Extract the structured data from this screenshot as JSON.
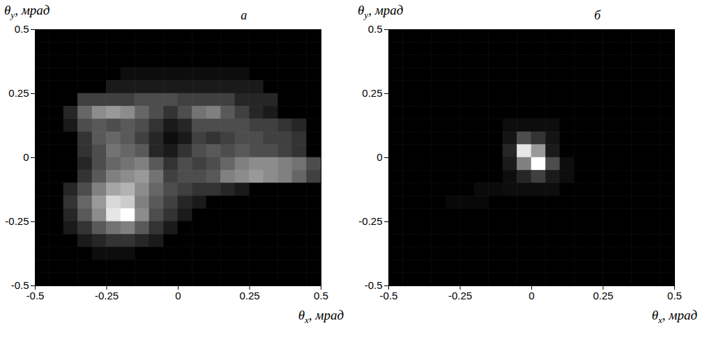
{
  "chart_data": [
    {
      "type": "heatmap",
      "title": "а",
      "x_label": "θx, мрад",
      "y_label": "θy, мрад",
      "xlim": [
        -0.5,
        0.5
      ],
      "ylim": [
        -0.5,
        0.5
      ],
      "xticks": [
        -0.5,
        -0.25,
        0,
        0.25,
        0.5
      ],
      "yticks": [
        -0.5,
        -0.25,
        0,
        0.25,
        0.5
      ],
      "color": "gray",
      "cells": [
        [
          0,
          0,
          0,
          0,
          0,
          0,
          0,
          0,
          0,
          0,
          0,
          0,
          0,
          0,
          0,
          0,
          0,
          0,
          0,
          0
        ],
        [
          0,
          0,
          0,
          0,
          0,
          0,
          0,
          0,
          0,
          0,
          0,
          0,
          0,
          0,
          0,
          0,
          0,
          0,
          0,
          0
        ],
        [
          0,
          0,
          0,
          0,
          0,
          0,
          0,
          0,
          0,
          0,
          0,
          0,
          0,
          0,
          0,
          0,
          0,
          0,
          0,
          0
        ],
        [
          0,
          0,
          0,
          0,
          0,
          0,
          0.05,
          0.05,
          0.05,
          0.05,
          0.05,
          0.05,
          0.05,
          0.05,
          0.05,
          0,
          0,
          0,
          0,
          0
        ],
        [
          0,
          0,
          0,
          0,
          0,
          0.1,
          0.1,
          0.1,
          0.1,
          0.1,
          0.1,
          0.1,
          0.1,
          0.1,
          0.1,
          0.1,
          0,
          0,
          0,
          0
        ],
        [
          0,
          0,
          0,
          0.25,
          0.25,
          0.25,
          0.25,
          0.3,
          0.3,
          0.3,
          0.25,
          0.25,
          0.25,
          0.25,
          0.15,
          0.15,
          0.15,
          0,
          0,
          0
        ],
        [
          0,
          0,
          0.15,
          0.4,
          0.55,
          0.6,
          0.55,
          0.4,
          0.3,
          0.2,
          0.3,
          0.45,
          0.5,
          0.35,
          0.25,
          0.15,
          0.1,
          0,
          0,
          0
        ],
        [
          0,
          0,
          0.1,
          0.3,
          0.35,
          0.3,
          0.35,
          0.3,
          0.2,
          0.1,
          0.15,
          0.3,
          0.3,
          0.3,
          0.3,
          0.25,
          0.25,
          0.2,
          0.15,
          0
        ],
        [
          0,
          0,
          0,
          0.2,
          0.35,
          0.4,
          0.35,
          0.25,
          0.15,
          0.05,
          0.1,
          0.25,
          0.2,
          0.25,
          0.3,
          0.3,
          0.25,
          0.25,
          0.2,
          0
        ],
        [
          0,
          0,
          0,
          0.2,
          0.3,
          0.45,
          0.4,
          0.35,
          0.15,
          0.1,
          0.2,
          0.3,
          0.35,
          0.3,
          0.35,
          0.3,
          0.3,
          0.25,
          0.2,
          0
        ],
        [
          0,
          0,
          0,
          0.15,
          0.3,
          0.4,
          0.45,
          0.5,
          0.35,
          0.2,
          0.3,
          0.25,
          0.3,
          0.4,
          0.5,
          0.55,
          0.55,
          0.5,
          0.45,
          0.3
        ],
        [
          0,
          0,
          0,
          0.2,
          0.35,
          0.5,
          0.55,
          0.6,
          0.45,
          0.25,
          0.3,
          0.3,
          0.35,
          0.5,
          0.55,
          0.6,
          0.55,
          0.5,
          0.4,
          0.25
        ],
        [
          0,
          0,
          0.15,
          0.3,
          0.5,
          0.65,
          0.7,
          0.55,
          0.4,
          0.3,
          0.25,
          0.2,
          0.2,
          0.15,
          0.1,
          0,
          0,
          0,
          0,
          0
        ],
        [
          0,
          0,
          0.2,
          0.4,
          0.6,
          0.85,
          0.8,
          0.5,
          0.35,
          0.25,
          0.15,
          0.1,
          0,
          0,
          0,
          0,
          0,
          0,
          0,
          0
        ],
        [
          0,
          0,
          0.15,
          0.35,
          0.55,
          0.9,
          1,
          0.55,
          0.3,
          0.2,
          0.1,
          0,
          0,
          0,
          0,
          0,
          0,
          0,
          0,
          0
        ],
        [
          0,
          0,
          0.1,
          0.2,
          0.35,
          0.45,
          0.5,
          0.35,
          0.2,
          0.1,
          0,
          0,
          0,
          0,
          0,
          0,
          0,
          0,
          0,
          0
        ],
        [
          0,
          0,
          0,
          0.1,
          0.15,
          0.2,
          0.2,
          0.15,
          0.1,
          0,
          0,
          0,
          0,
          0,
          0,
          0,
          0,
          0,
          0,
          0
        ],
        [
          0,
          0,
          0,
          0,
          0.05,
          0.05,
          0.05,
          0,
          0,
          0,
          0,
          0,
          0,
          0,
          0,
          0,
          0,
          0,
          0,
          0
        ],
        [
          0,
          0,
          0,
          0,
          0,
          0,
          0,
          0,
          0,
          0,
          0,
          0,
          0,
          0,
          0,
          0,
          0,
          0,
          0,
          0
        ],
        [
          0,
          0,
          0,
          0,
          0,
          0,
          0,
          0,
          0,
          0,
          0,
          0,
          0,
          0,
          0,
          0,
          0,
          0,
          0,
          0
        ]
      ]
    },
    {
      "type": "heatmap",
      "title": "б",
      "x_label": "θx, мрад",
      "y_label": "θy, мрад",
      "xlim": [
        -0.5,
        0.5
      ],
      "ylim": [
        -0.5,
        0.5
      ],
      "xticks": [
        -0.5,
        -0.25,
        0,
        0.25,
        0.5
      ],
      "yticks": [
        -0.5,
        -0.25,
        0,
        0.25,
        0.5
      ],
      "color": "gray",
      "cells": [
        [
          0,
          0,
          0,
          0,
          0,
          0,
          0,
          0,
          0,
          0,
          0,
          0,
          0,
          0,
          0,
          0,
          0,
          0,
          0,
          0
        ],
        [
          0,
          0,
          0,
          0,
          0,
          0,
          0,
          0,
          0,
          0,
          0,
          0,
          0,
          0,
          0,
          0,
          0,
          0,
          0,
          0
        ],
        [
          0,
          0,
          0,
          0,
          0,
          0,
          0,
          0,
          0,
          0,
          0,
          0,
          0,
          0,
          0,
          0,
          0,
          0,
          0,
          0
        ],
        [
          0,
          0,
          0,
          0,
          0,
          0,
          0,
          0,
          0,
          0,
          0,
          0,
          0,
          0,
          0,
          0,
          0,
          0,
          0,
          0
        ],
        [
          0,
          0,
          0,
          0,
          0,
          0,
          0,
          0,
          0,
          0,
          0,
          0,
          0,
          0,
          0,
          0,
          0,
          0,
          0,
          0
        ],
        [
          0,
          0,
          0,
          0,
          0,
          0,
          0,
          0,
          0,
          0,
          0,
          0,
          0,
          0,
          0,
          0,
          0,
          0,
          0,
          0
        ],
        [
          0,
          0,
          0,
          0,
          0,
          0,
          0,
          0,
          0,
          0,
          0,
          0,
          0,
          0,
          0,
          0,
          0,
          0,
          0,
          0
        ],
        [
          0,
          0,
          0,
          0,
          0,
          0,
          0,
          0,
          0.05,
          0.05,
          0.05,
          0.05,
          0,
          0,
          0,
          0,
          0,
          0,
          0,
          0
        ],
        [
          0,
          0,
          0,
          0,
          0,
          0,
          0,
          0,
          0.08,
          0.3,
          0.2,
          0.08,
          0,
          0,
          0,
          0,
          0,
          0,
          0,
          0
        ],
        [
          0,
          0,
          0,
          0,
          0,
          0,
          0,
          0,
          0.15,
          0.9,
          0.6,
          0.1,
          0,
          0,
          0,
          0,
          0,
          0,
          0,
          0
        ],
        [
          0,
          0,
          0,
          0,
          0,
          0,
          0,
          0,
          0.1,
          0.5,
          1,
          0.3,
          0.05,
          0,
          0,
          0,
          0,
          0,
          0,
          0
        ],
        [
          0,
          0,
          0,
          0,
          0,
          0,
          0,
          0,
          0.05,
          0.15,
          0.25,
          0.1,
          0.05,
          0,
          0,
          0,
          0,
          0,
          0,
          0
        ],
        [
          0,
          0,
          0,
          0,
          0,
          0,
          0.04,
          0.04,
          0.05,
          0.05,
          0.05,
          0.05,
          0,
          0,
          0,
          0,
          0,
          0,
          0,
          0
        ],
        [
          0,
          0,
          0,
          0,
          0.03,
          0.03,
          0.03,
          0,
          0,
          0,
          0,
          0,
          0,
          0,
          0,
          0,
          0,
          0,
          0,
          0
        ],
        [
          0,
          0,
          0,
          0,
          0,
          0,
          0,
          0,
          0,
          0,
          0,
          0,
          0,
          0,
          0,
          0,
          0,
          0,
          0,
          0
        ],
        [
          0,
          0,
          0,
          0,
          0,
          0,
          0,
          0,
          0,
          0,
          0,
          0,
          0,
          0,
          0,
          0,
          0,
          0,
          0,
          0
        ],
        [
          0,
          0,
          0,
          0,
          0,
          0,
          0,
          0,
          0,
          0,
          0,
          0,
          0,
          0,
          0,
          0,
          0,
          0,
          0,
          0
        ],
        [
          0,
          0,
          0,
          0,
          0,
          0,
          0,
          0,
          0,
          0,
          0,
          0,
          0,
          0,
          0,
          0,
          0,
          0,
          0,
          0
        ],
        [
          0,
          0,
          0,
          0,
          0,
          0,
          0,
          0,
          0,
          0,
          0,
          0,
          0,
          0,
          0,
          0,
          0,
          0,
          0,
          0
        ],
        [
          0,
          0,
          0,
          0,
          0,
          0,
          0,
          0,
          0,
          0,
          0,
          0,
          0,
          0,
          0,
          0,
          0,
          0,
          0,
          0
        ]
      ]
    }
  ]
}
